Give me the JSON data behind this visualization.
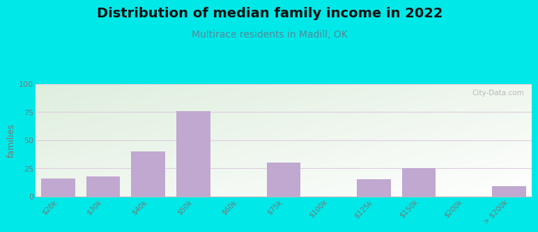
{
  "title": "Distribution of median family income in 2022",
  "subtitle": "Multirace residents in Madill, OK",
  "ylabel": "families",
  "categories": [
    "$20k",
    "$30k",
    "$40k",
    "$50k",
    "$60k",
    "$75k",
    "$100k",
    "$125k",
    "$150k",
    "$200k",
    "> $200k"
  ],
  "values": [
    16,
    18,
    40,
    76,
    0,
    30,
    0,
    15,
    25,
    0,
    9
  ],
  "bar_color": "#c0a8d0",
  "ylim": [
    0,
    100
  ],
  "yticks": [
    0,
    25,
    50,
    75,
    100
  ],
  "bg_outer": "#00e8e8",
  "bg_plot_topleft": "#deeedd",
  "bg_plot_right": "#f8fff8",
  "bg_plot_bottom": "#ffffff",
  "title_fontsize": 14,
  "subtitle_fontsize": 10,
  "subtitle_color": "#558899",
  "watermark": "City-Data.com",
  "grid_color": "#ddccdd",
  "tick_label_color": "#777777",
  "ylabel_color": "#777777"
}
